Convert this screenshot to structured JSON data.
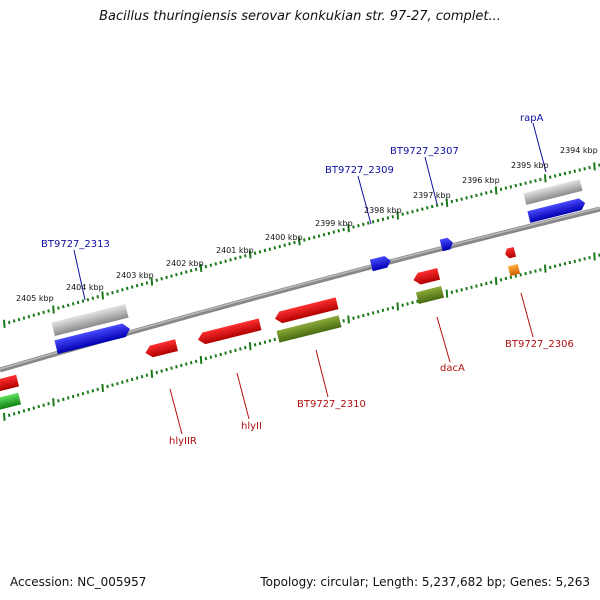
{
  "title": "Bacillus thuringiensis serovar konkukian str. 97-27, complet...",
  "footer": {
    "accession": "Accession: NC_005957",
    "summary": "Topology: circular; Length: 5,237,682 bp; Genes: 5,263"
  },
  "colors": {
    "backbone": "#777777",
    "tick": "#1a7a1a",
    "label_forward": "#1010a0",
    "label_reverse": "#b01010",
    "cds_forward": "#1a1aff",
    "cds_reverse": "#ff1a1a",
    "gene_gray": "#b8b8b8",
    "gene_olive": "#6b8a22",
    "gene_orange": "#ff8c00",
    "gene_green": "#22c022"
  },
  "ticks": [
    {
      "label": "2394 kbp"
    },
    {
      "label": "2395 kbp"
    },
    {
      "label": "2396 kbp"
    },
    {
      "label": "2397 kbp"
    },
    {
      "label": "2398 kbp"
    },
    {
      "label": "2399 kbp"
    },
    {
      "label": "2400 kbp"
    },
    {
      "label": "2401 kbp"
    },
    {
      "label": "2402 kbp"
    },
    {
      "label": "2403 kbp"
    },
    {
      "label": "2404 kbp"
    },
    {
      "label": "2405 kbp"
    }
  ],
  "gene_labels": [
    {
      "text": "rapA"
    },
    {
      "text": "BT9727_2307"
    },
    {
      "text": "BT9727_2309"
    },
    {
      "text": "BT9727_2313"
    },
    {
      "text": "BT9727_2306"
    },
    {
      "text": "dacA"
    },
    {
      "text": "BT9727_2310"
    },
    {
      "text": "hlyII"
    },
    {
      "text": "hlyIIR"
    }
  ]
}
